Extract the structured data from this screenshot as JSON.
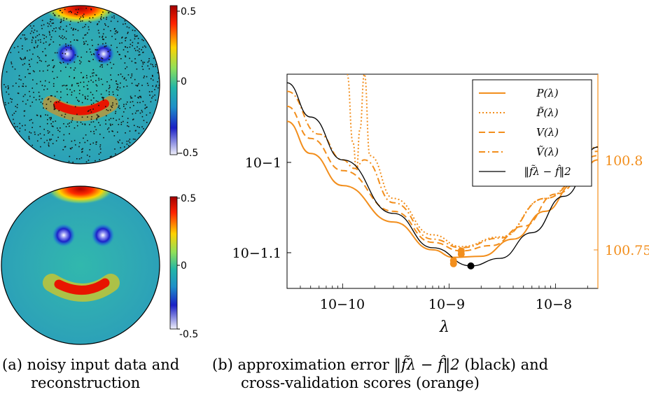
{
  "panel_a": {
    "caption_label": "(a)",
    "caption_line1": "noisy input data and",
    "caption_line2": "reconstruction",
    "colorbar_ticks": [
      "0.5",
      "0",
      "-0.5"
    ]
  },
  "panel_b": {
    "caption_label": "(b)",
    "caption_line1_prefix": "approximation error",
    "caption_line1_math": "‖f̃λ − f̂‖2",
    "caption_line1_suffix": "(black) and",
    "caption_line2": "cross-validation scores (orange)"
  },
  "colors": {
    "orange": "#f28e1c",
    "black": "#000000"
  },
  "chart_data": [
    {
      "type": "image",
      "description_items": [
        "noisy scattered data on disk",
        "reconstruction on disk"
      ],
      "colorbar": {
        "min": -0.5,
        "max": 0.5,
        "ticks": [
          "0.5",
          "0",
          "-0.5"
        ]
      }
    },
    {
      "type": "line",
      "xlabel": "λ",
      "x_scale": "log",
      "xlim": [
        3e-11,
        2.5e-08
      ],
      "x_ticks": [
        "10−10",
        "10−9",
        "10−8"
      ],
      "y_left_scale": "log",
      "y_left_ticks": [
        "10−1",
        "10−1.1"
      ],
      "y_right_scale": "log",
      "y_right_ticks": [
        "100.8",
        "100.75"
      ],
      "legend_position": "top-right",
      "series": [
        {
          "name": "P(λ)",
          "style": "solid",
          "color": "#f28e1c",
          "x": [
            3e-11,
            5e-11,
            1e-10,
            3e-10,
            7e-10,
            1.1e-09,
            2e-09,
            4e-09,
            8e-09,
            1.5e-08,
            2.5e-08
          ],
          "y_norm": [
            0.78,
            0.63,
            0.48,
            0.31,
            0.18,
            0.145,
            0.15,
            0.23,
            0.36,
            0.49,
            0.6
          ]
        },
        {
          "name": "P̃(λ)",
          "style": "dotted",
          "color": "#f28e1c",
          "x": [
            1.1e-10,
            1.25e-10,
            1.35e-10,
            1.45e-10,
            1.6e-10,
            1.8e-10,
            3e-10,
            7e-10,
            1.3e-09,
            3e-09,
            8e-09,
            2.5e-08
          ],
          "y_norm": [
            1.0,
            0.68,
            0.55,
            0.74,
            1.0,
            0.62,
            0.42,
            0.25,
            0.195,
            0.24,
            0.42,
            0.66
          ]
        },
        {
          "name": "V(λ)",
          "style": "dashed",
          "color": "#f28e1c",
          "x": [
            3e-11,
            5e-11,
            1e-10,
            3e-10,
            7e-10,
            1.3e-09,
            2.5e-09,
            5e-09,
            1e-08,
            2.5e-08
          ],
          "y_norm": [
            0.85,
            0.7,
            0.55,
            0.36,
            0.215,
            0.175,
            0.2,
            0.29,
            0.44,
            0.62
          ]
        },
        {
          "name": "Ṽ(λ)",
          "style": "dashdot",
          "color": "#f28e1c",
          "x": [
            3e-11,
            6e-11,
            1e-10,
            1.3e-10,
            1.6e-10,
            3e-10,
            7e-10,
            1.3e-09,
            3e-09,
            8e-09,
            2.5e-08
          ],
          "y_norm": [
            0.92,
            0.72,
            0.6,
            0.56,
            0.6,
            0.4,
            0.23,
            0.19,
            0.235,
            0.42,
            0.64
          ]
        },
        {
          "name": "‖f̃λ − f̂‖2",
          "style": "solid",
          "color": "#000000",
          "x": [
            3e-11,
            5e-11,
            1e-10,
            3e-10,
            7e-10,
            1.6e-09,
            3e-09,
            6e-09,
            1.2e-08,
            2.5e-08
          ],
          "y_norm": [
            0.96,
            0.8,
            0.6,
            0.35,
            0.19,
            0.105,
            0.14,
            0.26,
            0.43,
            0.66
          ]
        }
      ],
      "minima_markers": [
        {
          "x": 1.1e-09,
          "y_norm": 0.115,
          "color": "#f28e1c"
        },
        {
          "x": 1.1e-09,
          "y_norm": 0.13,
          "color": "#f28e1c"
        },
        {
          "x": 1.3e-09,
          "y_norm": 0.16,
          "color": "#f28e1c"
        },
        {
          "x": 1.3e-09,
          "y_norm": 0.175,
          "color": "#f28e1c"
        },
        {
          "x": 1.6e-09,
          "y_norm": 0.105,
          "color": "#000000"
        }
      ]
    }
  ]
}
